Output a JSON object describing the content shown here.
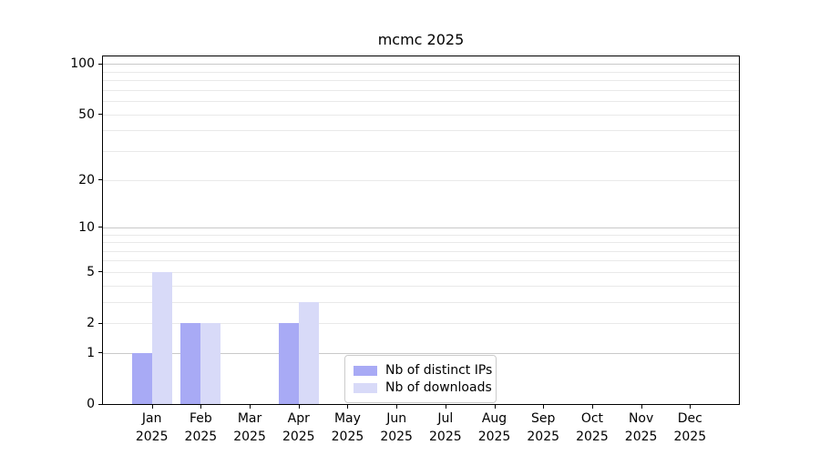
{
  "chart_data": {
    "type": "bar",
    "title": "mcmc 2025",
    "categories": [
      "Jan",
      "Feb",
      "Mar",
      "Apr",
      "May",
      "Jun",
      "Jul",
      "Aug",
      "Sep",
      "Oct",
      "Nov",
      "Dec"
    ],
    "x_tick_second_line": "2025",
    "series": [
      {
        "name": "Nb of distinct IPs",
        "color": "#a8aaf5",
        "values": [
          1,
          2,
          0,
          2,
          0,
          0,
          0,
          0,
          0,
          0,
          0,
          0
        ]
      },
      {
        "name": "Nb of downloads",
        "color": "#d8daf8",
        "values": [
          5,
          2,
          0,
          3,
          0,
          0,
          0,
          0,
          0,
          0,
          0,
          0
        ]
      }
    ],
    "y_axis": {
      "scale": "log1p",
      "ticks": [
        0,
        1,
        2,
        5,
        10,
        20,
        50,
        100
      ],
      "major_gridlines": [
        1,
        10,
        100
      ],
      "minor_gridlines": [
        2,
        3,
        4,
        5,
        6,
        7,
        8,
        9,
        20,
        30,
        40,
        50,
        60,
        70,
        80,
        90
      ],
      "ylim": [
        0,
        111
      ]
    },
    "xlabel": "",
    "ylabel": "",
    "grid": true,
    "legend_position": "lower center inside"
  },
  "colors": {
    "major_grid": "#c9c9c9",
    "minor_grid": "#e9e9e9",
    "axis": "#000000",
    "legend_border": "#cccccc"
  }
}
